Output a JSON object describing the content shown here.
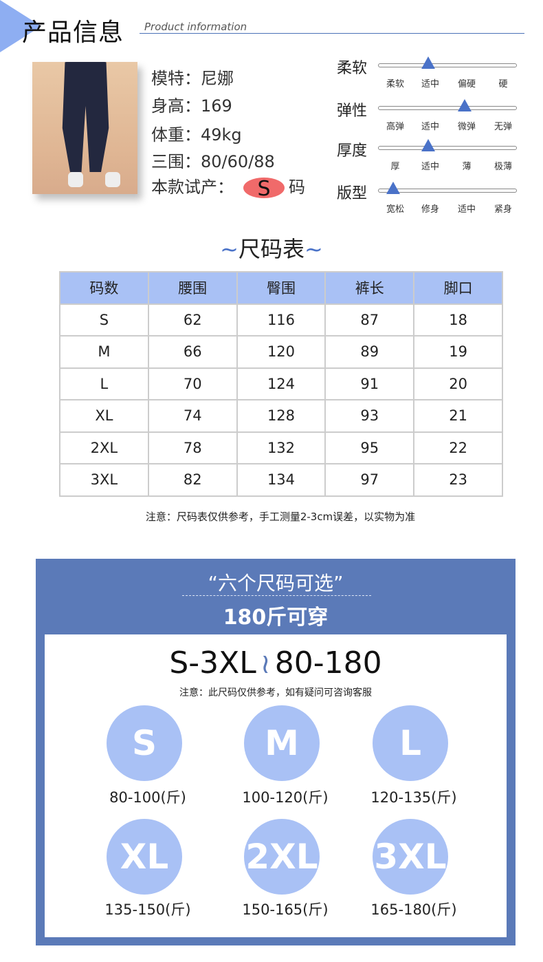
{
  "header": {
    "title": "产品信息",
    "subtitle": "Product information"
  },
  "model": {
    "lines": [
      "模特：尼娜",
      "身高：169",
      "体重：49kg",
      "三围：80/60/88"
    ],
    "trial_prefix": "本款试产：",
    "trial_size": "S",
    "trial_suffix": "码"
  },
  "attributes": [
    {
      "label": "柔软",
      "options": [
        "柔软",
        "适中",
        "偏硬",
        "硬"
      ],
      "selected_index": 1
    },
    {
      "label": "弹性",
      "options": [
        "高弹",
        "适中",
        "微弹",
        "无弹"
      ],
      "selected_index": 2
    },
    {
      "label": "厚度",
      "options": [
        "厚",
        "适中",
        "薄",
        "极薄"
      ],
      "selected_index": 1
    },
    {
      "label": "版型",
      "options": [
        "宽松",
        "修身",
        "适中",
        "紧身"
      ],
      "selected_index": 0
    }
  ],
  "size_chart": {
    "title": "尺码表",
    "headers": [
      "码数",
      "腰围",
      "臀围",
      "裤长",
      "脚口"
    ],
    "rows": [
      [
        "S",
        "62",
        "116",
        "87",
        "18"
      ],
      [
        "M",
        "66",
        "120",
        "89",
        "19"
      ],
      [
        "L",
        "70",
        "124",
        "91",
        "20"
      ],
      [
        "XL",
        "74",
        "128",
        "93",
        "21"
      ],
      [
        "2XL",
        "78",
        "132",
        "95",
        "22"
      ],
      [
        "3XL",
        "82",
        "134",
        "97",
        "23"
      ]
    ],
    "note": "注意：尺码表仅供参考，手工测量2-3cm误差，以实物为准"
  },
  "promo": {
    "line1": "“六个尺码可选”",
    "line2": "180斤可穿",
    "range_size": "S-3XL",
    "range_weight": "80-180",
    "note": "注意：此尺码仅供参考，如有疑问可咨询客服",
    "sizes": [
      {
        "size": "S",
        "weight": "80-100(斤)"
      },
      {
        "size": "M",
        "weight": "100-120(斤)"
      },
      {
        "size": "L",
        "weight": "120-135(斤)"
      },
      {
        "size": "XL",
        "weight": "135-150(斤)"
      },
      {
        "size": "2XL",
        "weight": "150-165(斤)"
      },
      {
        "size": "3XL",
        "weight": "165-180(斤)"
      }
    ]
  },
  "colors": {
    "accent": "#5b7ab8",
    "light": "#a9c1f5",
    "marker": "#4a72c8"
  }
}
